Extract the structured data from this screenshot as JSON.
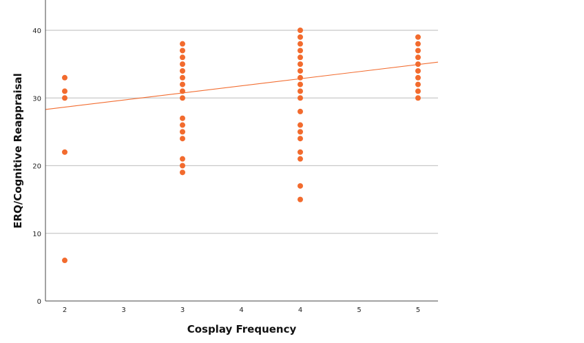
{
  "chart_data": {
    "type": "scatter",
    "title": "",
    "xlabel": "Cosplay Frequency",
    "ylabel": "ERQ/Cognitive Reappraisal",
    "x_tick_labels": [
      "2",
      "3",
      "3",
      "4",
      "4",
      "5",
      "5"
    ],
    "y_ticks": [
      0,
      10,
      20,
      30,
      40
    ],
    "ylim": [
      0,
      44
    ],
    "grid": {
      "horizontal": true,
      "vertical": false
    },
    "legend": null,
    "colors": {
      "points": "#f26b2e",
      "fit_line": "#f26b2e",
      "grid": "#c8c8c8",
      "axis": "#444444"
    },
    "series": [
      {
        "x_label": "2",
        "x_position": 0,
        "values": [
          33,
          31,
          30,
          22,
          6
        ]
      },
      {
        "x_label": "3",
        "x_position": 2,
        "values": [
          38,
          37,
          36,
          35,
          34,
          33,
          32,
          31,
          30,
          27,
          26,
          25,
          24,
          21,
          20,
          19
        ]
      },
      {
        "x_label": "4",
        "x_position": 4,
        "values": [
          40,
          39,
          38,
          37,
          36,
          35,
          34,
          33,
          32,
          31,
          30,
          28,
          26,
          25,
          24,
          22,
          21,
          17,
          15
        ]
      },
      {
        "x_label": "5",
        "x_position": 6,
        "values": [
          39,
          38,
          37,
          36,
          35,
          34,
          33,
          32,
          31,
          30
        ]
      }
    ],
    "fit_line": {
      "type": "linear",
      "y_at_left_edge": 28.3,
      "y_at_right_edge": 35.3
    }
  }
}
